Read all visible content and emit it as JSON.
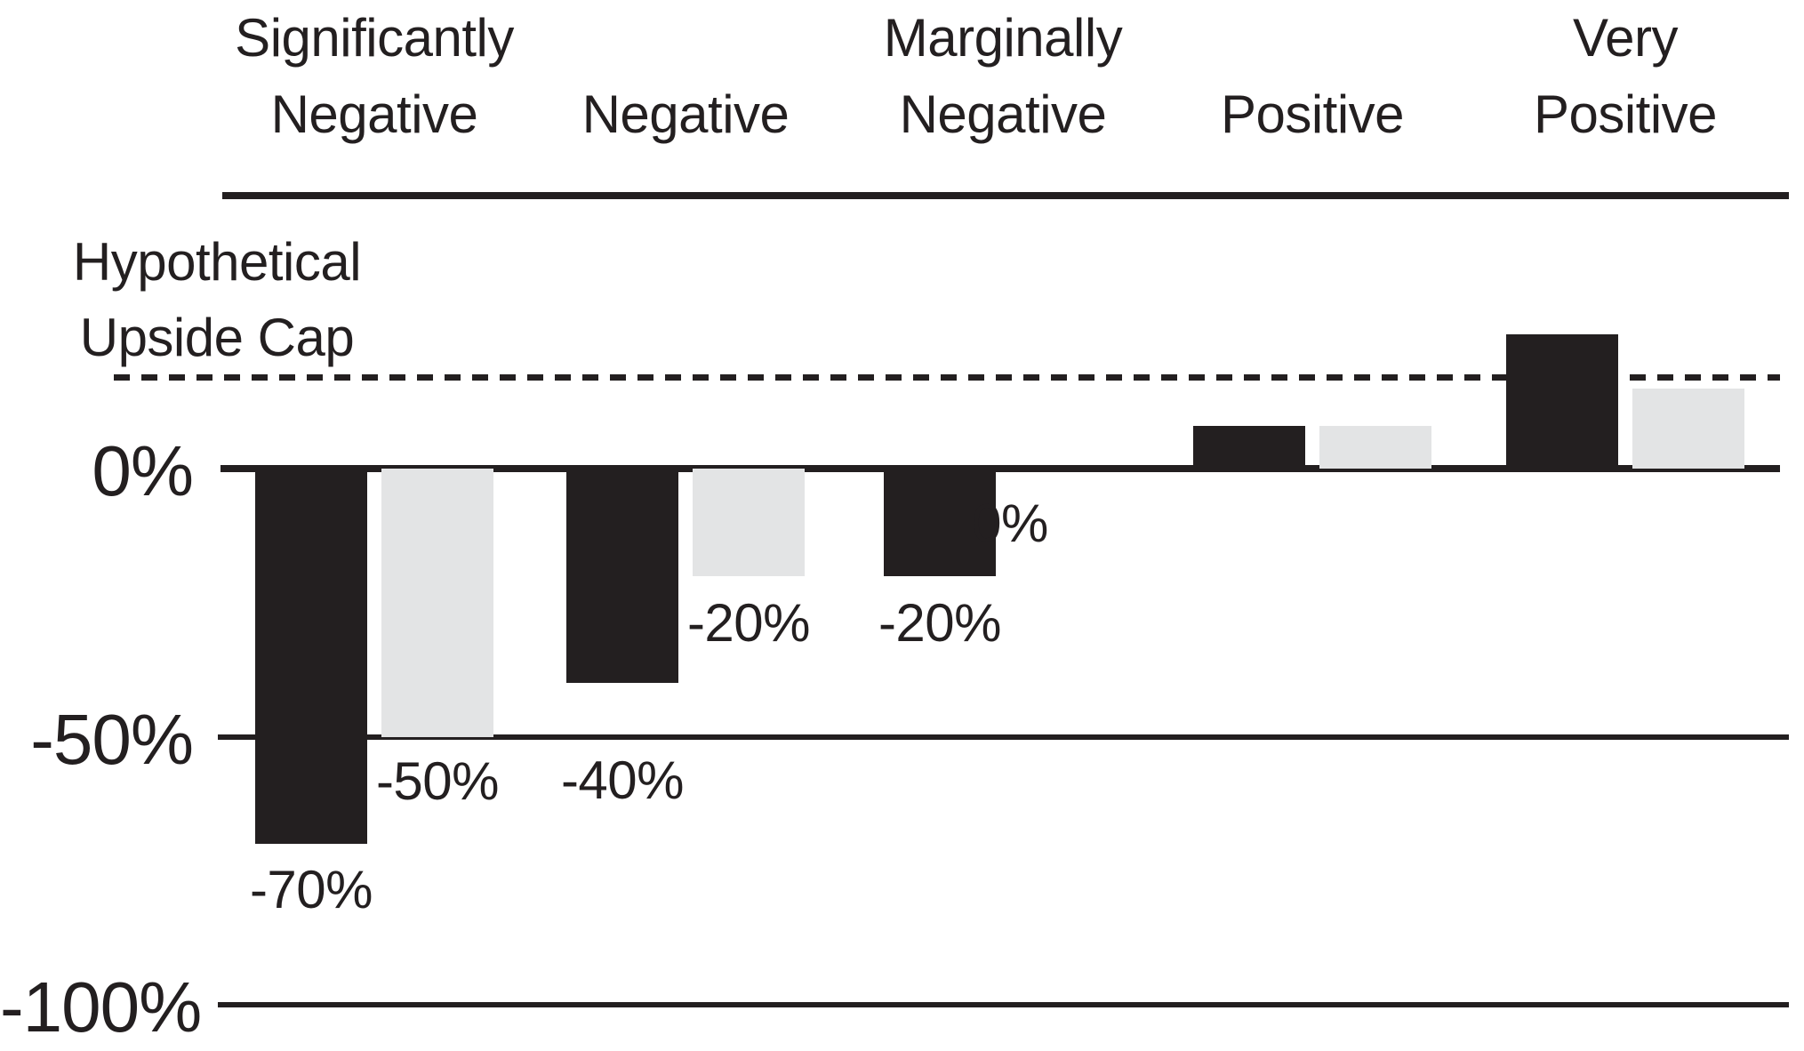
{
  "colors": {
    "bar_black": "#231f20",
    "bar_gray": "#e3e4e5",
    "line": "#231f20",
    "background": "#ffffff"
  },
  "cap_label": {
    "line1": "Hypothetical",
    "line2": "Upside Cap"
  },
  "chart_data": {
    "type": "bar",
    "title": "",
    "categories": [
      {
        "label": "Significantly Negative",
        "lines": [
          "Significantly",
          "Negative"
        ]
      },
      {
        "label": "Negative",
        "lines": [
          "Negative"
        ]
      },
      {
        "label": "Marginally Negative",
        "lines": [
          "Marginally",
          "Negative"
        ]
      },
      {
        "label": "Positive",
        "lines": [
          "Positive"
        ]
      },
      {
        "label": "Very Positive",
        "lines": [
          "Very",
          "Positive"
        ]
      }
    ],
    "series": [
      {
        "name": "underlying-index",
        "color": "#231f20",
        "values": [
          -70,
          -40,
          -20,
          8,
          25
        ],
        "data_labels": [
          "-70%",
          "-40%",
          "-20%",
          "",
          ""
        ]
      },
      {
        "name": "hypothetical-fund",
        "color": "#e3e4e5",
        "values": [
          -50,
          -20,
          0,
          8,
          15
        ],
        "data_labels": [
          "-50%",
          "-20%",
          "0%",
          "",
          ""
        ]
      }
    ],
    "y_axis": {
      "ticks": [
        {
          "value": 0,
          "label": "0%"
        },
        {
          "value": -50,
          "label": "-50%"
        },
        {
          "value": -100,
          "label": "-100%"
        }
      ],
      "ylim": [
        -100,
        30
      ]
    },
    "upside_cap": {
      "label": "Hypothetical Upside Cap",
      "value": 17,
      "line_style": "dashed"
    },
    "legend_position": "none",
    "grid": "horizontal-gridlines"
  }
}
